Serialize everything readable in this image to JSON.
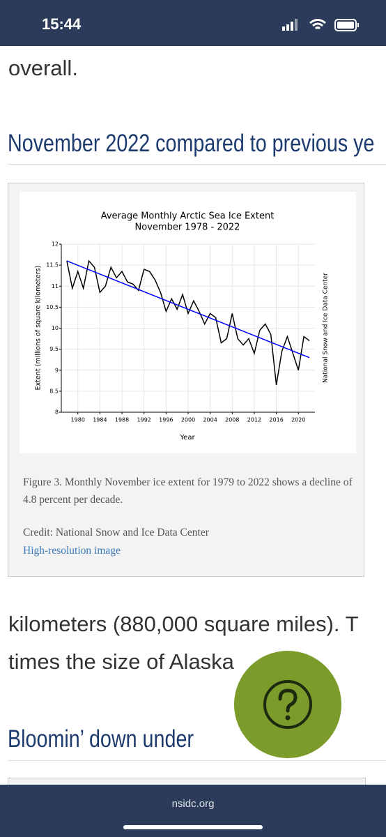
{
  "status_bar": {
    "time": "15:44"
  },
  "article": {
    "paragraph_end": "overall.",
    "heading": "November 2022 compared to previous ye",
    "figure": {
      "caption": "Figure 3. Monthly November ice extent for 1979 to 2022 shows a decline of 4.8 percent per decade.",
      "credit": "Credit: National Snow and Ice Data Center",
      "link": "High-resolution image"
    },
    "paragraph_lines": [
      "kilometers (880,000 square miles). T",
      "times the size of Alaska"
    ],
    "heading_2": "Bloomin’ down under"
  },
  "chart_data": {
    "type": "line",
    "title": "Average Monthly Arctic Sea Ice Extent",
    "subtitle": "November 1978 - 2022",
    "x_label": "Year",
    "y_label": "Extent (millions of square kilometers)",
    "side_label": "National Snow and Ice Data Center",
    "x": [
      1978,
      1979,
      1980,
      1981,
      1982,
      1983,
      1984,
      1985,
      1986,
      1987,
      1988,
      1989,
      1990,
      1991,
      1992,
      1993,
      1994,
      1995,
      1996,
      1997,
      1998,
      1999,
      2000,
      2001,
      2002,
      2003,
      2004,
      2005,
      2006,
      2007,
      2008,
      2009,
      2010,
      2011,
      2012,
      2013,
      2014,
      2015,
      2016,
      2017,
      2018,
      2019,
      2020,
      2021,
      2022
    ],
    "series": [
      {
        "color": "#000000",
        "values": [
          11.6,
          10.95,
          11.35,
          10.95,
          11.6,
          11.45,
          10.85,
          11.0,
          11.45,
          11.2,
          11.35,
          11.1,
          11.05,
          10.9,
          11.4,
          11.35,
          11.15,
          10.85,
          10.4,
          10.7,
          10.45,
          10.8,
          10.35,
          10.65,
          10.4,
          10.1,
          10.35,
          10.25,
          9.65,
          9.75,
          10.35,
          9.75,
          9.6,
          9.75,
          9.4,
          9.95,
          10.1,
          9.85,
          8.65,
          9.45,
          9.8,
          9.4,
          9.0,
          9.8,
          9.7
        ]
      }
    ],
    "trend_line": {
      "x": [
        1978,
        2022
      ],
      "values": [
        11.6,
        9.3
      ],
      "color": "#0000ff"
    },
    "xlim": [
      1977,
      2023
    ],
    "xticks": [
      1980,
      1984,
      1988,
      1992,
      1996,
      2000,
      2004,
      2008,
      2012,
      2016,
      2020
    ],
    "ylim": [
      8,
      12
    ],
    "yticks": [
      8,
      8.5,
      9,
      9.5,
      10,
      10.5,
      11,
      11.5,
      12
    ],
    "grid": true
  },
  "bottom_bar": {
    "url": "nsidc.org"
  }
}
